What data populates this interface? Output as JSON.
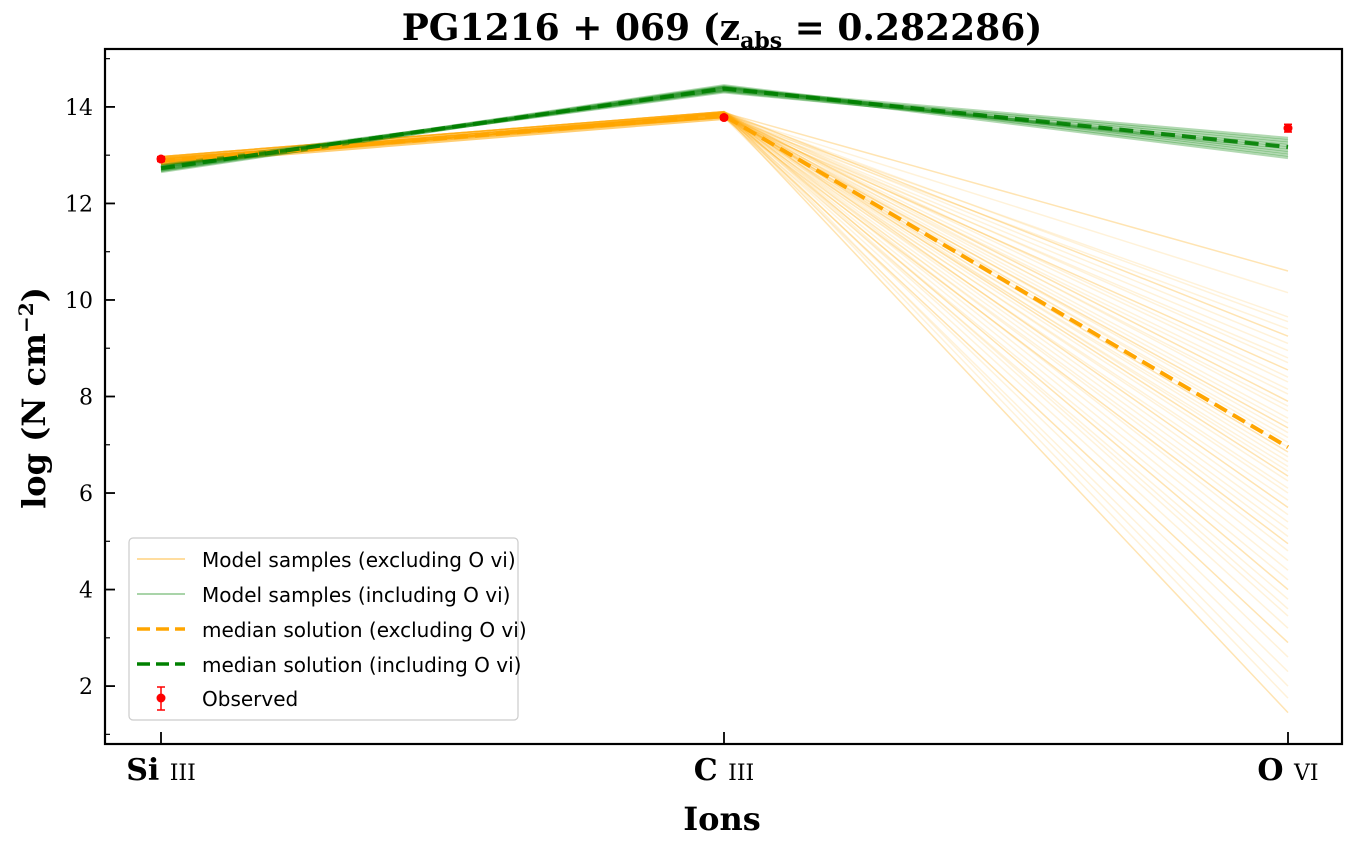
{
  "chart_data": {
    "type": "line",
    "title": "PG1216 + 069 (z",
    "title_sub": "abs",
    "title_tail": " = 0.282286)",
    "xlabel": "Ions",
    "ylabel_main": "log (N cm",
    "ylabel_sup": "−2",
    "ylabel_tail": ")",
    "categories": [
      {
        "element": "Si",
        "stage": "III"
      },
      {
        "element": "C",
        "stage": "III"
      },
      {
        "element": "O",
        "stage": "VI"
      }
    ],
    "ylim": [
      0.8,
      15.2
    ],
    "yticks": [
      2,
      4,
      6,
      8,
      10,
      12,
      14
    ],
    "grid": false,
    "legend_position": "lower-left",
    "colors": {
      "excluding": "#ffa500",
      "including": "#008000",
      "observed": "#ff0000"
    },
    "observed": {
      "name": "Observed",
      "values": [
        12.92,
        13.78,
        13.56
      ],
      "errors": [
        0.05,
        0.04,
        0.08
      ]
    },
    "median_excluding": {
      "name": "median solution (excluding O vi)",
      "values": [
        12.88,
        13.82,
        6.95
      ]
    },
    "median_including": {
      "name": "median solution (including O vi)",
      "values": [
        12.73,
        14.38,
        13.17
      ]
    },
    "samples_excluding": {
      "name": "Model samples (excluding O vi)",
      "oxygen_values": [
        10.6,
        10.15,
        9.65,
        9.55,
        9.4,
        9.25,
        9.1,
        8.95,
        8.8,
        8.7,
        8.55,
        8.4,
        8.3,
        8.15,
        8.05,
        7.9,
        7.8,
        7.7,
        7.55,
        7.45,
        7.35,
        7.25,
        7.15,
        7.05,
        6.95,
        6.85,
        6.75,
        6.65,
        6.55,
        6.45,
        6.35,
        6.25,
        6.1,
        6.0,
        5.85,
        5.7,
        5.55,
        5.4,
        5.25,
        5.1,
        4.95,
        4.8,
        4.6,
        4.4,
        4.2,
        4.0,
        3.8,
        3.6,
        3.45,
        3.2,
        2.9,
        2.6,
        2.3,
        2.0,
        1.75,
        1.45
      ]
    },
    "samples_including": {
      "name": "Model samples (including O vi)",
      "oxygen_values": [
        12.95,
        13.0,
        13.05,
        13.1,
        13.15,
        13.2,
        13.25,
        13.3,
        13.35
      ]
    }
  }
}
